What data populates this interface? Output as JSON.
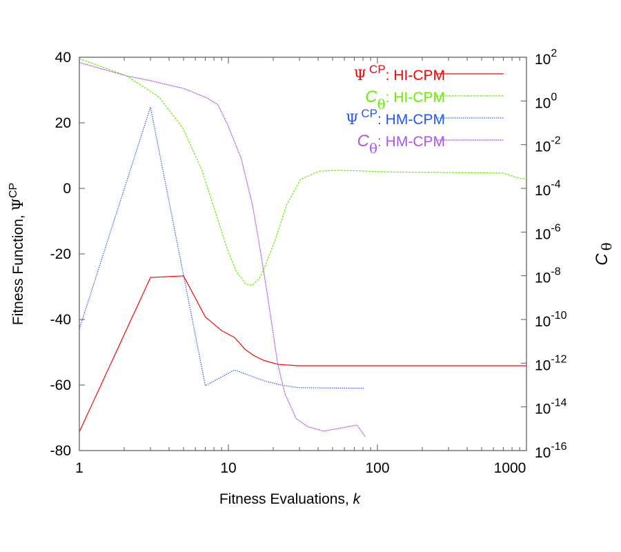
{
  "chart_data": {
    "type": "line",
    "title": "",
    "xlabel": "Fitness Evaluations, ",
    "xlabel_italic": "k",
    "ylabel": "Fitness Function, ",
    "ylabel_symbol": "Ψ",
    "ylabel_sup": "CP",
    "y2label": "C",
    "y2label_sub": "θ",
    "x_scale": "log",
    "xlim": [
      1,
      1000
    ],
    "ylim": [
      -80,
      40
    ],
    "y2_scale": "log",
    "y2lim_exponent": [
      -16,
      2
    ],
    "grid": false,
    "legend_position": "top-right",
    "x_ticks": [
      "1",
      "10",
      "100",
      "1000"
    ],
    "y_ticks": [
      "40",
      "20",
      "0",
      "-20",
      "-40",
      "-60",
      "-80"
    ],
    "y2_ticks": [
      {
        "base": "10",
        "exp": "2"
      },
      {
        "base": "10",
        "exp": "0"
      },
      {
        "base": "10",
        "exp": "-2"
      },
      {
        "base": "10",
        "exp": "-4"
      },
      {
        "base": "10",
        "exp": "-6"
      },
      {
        "base": "10",
        "exp": "-8"
      },
      {
        "base": "10",
        "exp": "-10"
      },
      {
        "base": "10",
        "exp": "-12"
      },
      {
        "base": "10",
        "exp": "-14"
      },
      {
        "base": "10",
        "exp": "-16"
      }
    ],
    "series": [
      {
        "symbol": "Ψ",
        "sup": "CP",
        "sub": "",
        "suffix": ": HI-CPM",
        "axis": "left",
        "color": "#ff0000",
        "dash": "none",
        "x": [
          1,
          3,
          5,
          7,
          9,
          11,
          13,
          14.8,
          17.3,
          21.5,
          29.4,
          100,
          1000
        ],
        "y": [
          -74.3,
          -27.2,
          -26.7,
          -39.2,
          -43.4,
          -45.5,
          -49.2,
          -51.0,
          -52.5,
          -53.7,
          -54.1,
          -54.1,
          -54.1
        ]
      },
      {
        "symbol": "C",
        "sup": "",
        "sub": "θ",
        "suffix": ": HI-CPM",
        "axis": "right",
        "color": "#66ee00",
        "dash": "3,1.5",
        "x": [
          1,
          2.07,
          3.4,
          4.93,
          6.65,
          9.85,
          11.3,
          13.1,
          14.5,
          16.2,
          17.3,
          20.7,
          24.6,
          30.5,
          40.6,
          53.8,
          126,
          692,
          920,
          1000
        ],
        "log10_y": [
          1.94,
          1.15,
          0.2,
          -1.22,
          -3.17,
          -6.8,
          -7.8,
          -8.38,
          -8.43,
          -8.11,
          -7.69,
          -6.33,
          -4.75,
          -3.59,
          -3.22,
          -3.17,
          -3.25,
          -3.3,
          -3.56,
          -3.53
        ]
      },
      {
        "symbol": "Ψ",
        "sup": "CP",
        "sub": "",
        "suffix": ": HM-CPM",
        "axis": "left",
        "color": "#2255ff",
        "dash": "1.5,1.5",
        "x": [
          1,
          3,
          7,
          11,
          17.3,
          23,
          29.4,
          81
        ],
        "y": [
          -42.9,
          24.8,
          -60.2,
          -55.4,
          -58.7,
          -60.1,
          -60.8,
          -61.0
        ]
      },
      {
        "symbol": "C",
        "sup": "",
        "sub": "θ",
        "suffix": ": HM-CPM",
        "axis": "right",
        "color": "#aa55ee",
        "dash": "2,0.8",
        "x": [
          1,
          2.07,
          2.95,
          5.02,
          7.14,
          8.5,
          9.85,
          12.2,
          14.5,
          16.2,
          18.3,
          21.4,
          23.9,
          28.5,
          34,
          43.5,
          55.9,
          72.8,
          82.8
        ],
        "log10_y": [
          1.76,
          1.15,
          0.94,
          0.57,
          0.15,
          -0.17,
          -1.06,
          -2.64,
          -4.75,
          -6.64,
          -8.9,
          -12.01,
          -13.38,
          -14.54,
          -14.9,
          -15.11,
          -14.98,
          -14.83,
          -15.36
        ]
      }
    ]
  }
}
